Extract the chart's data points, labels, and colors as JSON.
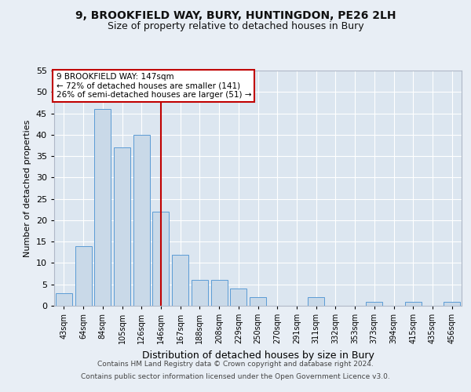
{
  "title1": "9, BROOKFIELD WAY, BURY, HUNTINGDON, PE26 2LH",
  "title2": "Size of property relative to detached houses in Bury",
  "xlabel": "Distribution of detached houses by size in Bury",
  "ylabel": "Number of detached properties",
  "categories": [
    "43sqm",
    "64sqm",
    "84sqm",
    "105sqm",
    "126sqm",
    "146sqm",
    "167sqm",
    "188sqm",
    "208sqm",
    "229sqm",
    "250sqm",
    "270sqm",
    "291sqm",
    "311sqm",
    "332sqm",
    "353sqm",
    "373sqm",
    "394sqm",
    "415sqm",
    "435sqm",
    "456sqm"
  ],
  "values": [
    3,
    14,
    46,
    37,
    40,
    22,
    12,
    6,
    6,
    4,
    2,
    0,
    0,
    2,
    0,
    0,
    1,
    0,
    1,
    0,
    1
  ],
  "bar_color": "#c9d9e8",
  "bar_edge_color": "#5b9bd5",
  "vline_x_index": 5,
  "annotation_line1": "9 BROOKFIELD WAY: 147sqm",
  "annotation_line2": "← 72% of detached houses are smaller (141)",
  "annotation_line3": "26% of semi-detached houses are larger (51) →",
  "vline_color": "#c00000",
  "box_edge_color": "#c00000",
  "footer1": "Contains HM Land Registry data © Crown copyright and database right 2024.",
  "footer2": "Contains public sector information licensed under the Open Government Licence v3.0.",
  "ylim": [
    0,
    55
  ],
  "yticks": [
    0,
    5,
    10,
    15,
    20,
    25,
    30,
    35,
    40,
    45,
    50,
    55
  ],
  "bg_color": "#e8eef5",
  "plot_bg": "#dce6f0",
  "title1_fontsize": 10,
  "title2_fontsize": 9,
  "ylabel_fontsize": 8,
  "xlabel_fontsize": 9,
  "tick_fontsize": 7,
  "footer_fontsize": 6.5,
  "annotation_fontsize": 7.5
}
